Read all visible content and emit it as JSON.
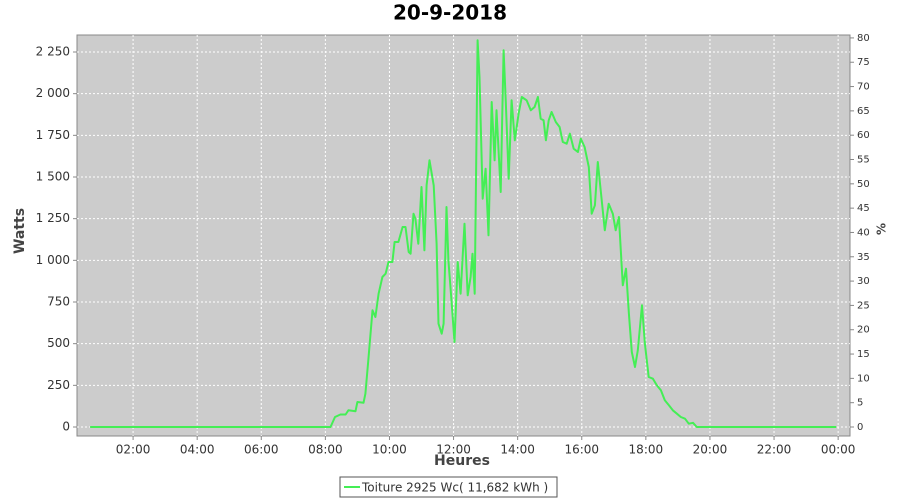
{
  "chart_data": {
    "type": "line",
    "title": "20-9-2018",
    "x_label": "Heures",
    "y_label": "Watts",
    "y2_label": "%",
    "grid": true,
    "legend": "bottom",
    "x": [
      0.66,
      8.16,
      8.3,
      8.47,
      8.63,
      8.72,
      8.94,
      9.0,
      9.19,
      9.25,
      9.34,
      9.47,
      9.56,
      9.66,
      9.78,
      9.88,
      9.97,
      10.09,
      10.16,
      10.28,
      10.41,
      10.5,
      10.6,
      10.66,
      10.75,
      10.81,
      10.9,
      11.0,
      11.09,
      11.16,
      11.25,
      11.38,
      11.47,
      11.53,
      11.63,
      11.69,
      11.78,
      11.84,
      11.94,
      12.03,
      12.13,
      12.22,
      12.34,
      12.44,
      12.53,
      12.59,
      12.66,
      12.75,
      12.81,
      12.91,
      13.0,
      13.09,
      13.19,
      13.28,
      13.34,
      13.47,
      13.56,
      13.63,
      13.72,
      13.81,
      13.91,
      14.03,
      14.13,
      14.28,
      14.41,
      14.53,
      14.63,
      14.72,
      14.81,
      14.88,
      14.97,
      15.06,
      15.19,
      15.31,
      15.41,
      15.53,
      15.63,
      15.75,
      15.88,
      15.97,
      16.09,
      16.22,
      16.31,
      16.41,
      16.5,
      16.59,
      16.72,
      16.84,
      16.97,
      17.06,
      17.16,
      17.28,
      17.38,
      17.47,
      17.56,
      17.66,
      17.75,
      17.88,
      17.97,
      18.09,
      18.22,
      18.34,
      18.47,
      18.59,
      18.72,
      18.84,
      18.97,
      19.09,
      19.22,
      19.34,
      19.47,
      19.59,
      23.94
    ],
    "series": [
      {
        "name": "Toiture 2925 Wc( 11,682 kWh )",
        "color": "#44ee55",
        "values": [
          0,
          0,
          60,
          75,
          75,
          100,
          95,
          150,
          145,
          200,
          400,
          700,
          660,
          800,
          900,
          920,
          990,
          990,
          1110,
          1110,
          1200,
          1200,
          1050,
          1040,
          1280,
          1250,
          1100,
          1440,
          1060,
          1450,
          1600,
          1450,
          1100,
          620,
          560,
          620,
          1320,
          1000,
          750,
          510,
          990,
          800,
          1220,
          790,
          900,
          1040,
          800,
          2320,
          2100,
          1370,
          1550,
          1150,
          1950,
          1600,
          1900,
          1410,
          2260,
          1950,
          1490,
          1960,
          1720,
          1880,
          1980,
          1960,
          1900,
          1920,
          1980,
          1850,
          1840,
          1720,
          1840,
          1890,
          1830,
          1800,
          1710,
          1700,
          1760,
          1670,
          1650,
          1730,
          1680,
          1560,
          1280,
          1330,
          1590,
          1420,
          1180,
          1340,
          1280,
          1180,
          1260,
          850,
          950,
          680,
          450,
          360,
          460,
          730,
          500,
          300,
          290,
          250,
          220,
          160,
          130,
          100,
          80,
          60,
          50,
          20,
          25,
          0,
          0
        ]
      }
    ],
    "xlim": [
      0.25,
      24.37
    ],
    "xticks": [
      {
        "value": 2,
        "label": "02:00"
      },
      {
        "value": 4,
        "label": "04:00"
      },
      {
        "value": 6,
        "label": "06:00"
      },
      {
        "value": 8,
        "label": "08:00"
      },
      {
        "value": 10,
        "label": "10:00"
      },
      {
        "value": 12,
        "label": "12:00"
      },
      {
        "value": 14,
        "label": "14:00"
      },
      {
        "value": 16,
        "label": "16:00"
      },
      {
        "value": 18,
        "label": "18:00"
      },
      {
        "value": 20,
        "label": "20:00"
      },
      {
        "value": 22,
        "label": "22:00"
      },
      {
        "value": 24,
        "label": "00:00"
      }
    ],
    "ylim": [
      -54,
      2352
    ],
    "yticks": [
      0,
      250,
      500,
      750,
      {
        "value": 1000,
        "label": "1 000"
      },
      {
        "value": 1250,
        "label": "1 250"
      },
      {
        "value": 1500,
        "label": "1 500"
      },
      {
        "value": 1750,
        "label": "1 750"
      },
      {
        "value": 2000,
        "label": "2 000"
      },
      {
        "value": 2250,
        "label": "2 250"
      }
    ],
    "y2lim": [
      -1.85,
      80.6
    ],
    "y2ticks": [
      0,
      5,
      10,
      15,
      20,
      25,
      30,
      35,
      40,
      45,
      50,
      55,
      60,
      65,
      70,
      75,
      80
    ]
  }
}
